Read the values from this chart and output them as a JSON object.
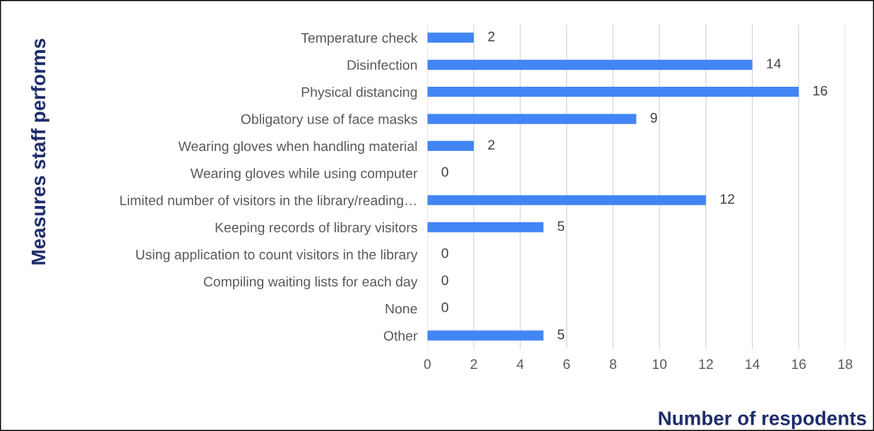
{
  "chart_data": {
    "type": "bar",
    "orientation": "horizontal",
    "xlabel": "Number of respodents",
    "ylabel": "Measures staff performs",
    "categories": [
      "Temperature check",
      "Disinfection",
      "Physical distancing",
      "Obligatory use of face masks",
      "Wearing gloves when handling material",
      "Wearing gloves while using computer",
      "Limited number of visitors in the library/reading…",
      "Keeping records of library visitors",
      "Using application to count visitors in the library",
      "Compiling waiting lists for each day",
      "None",
      "Other"
    ],
    "values": [
      2,
      14,
      16,
      9,
      2,
      0,
      12,
      5,
      0,
      0,
      0,
      5
    ],
    "color": "#4285f4",
    "xlim": [
      0,
      18
    ],
    "xticks": [
      0,
      2,
      4,
      6,
      8,
      10,
      12,
      14,
      16,
      18
    ],
    "grid": "x",
    "data_labels": true
  }
}
